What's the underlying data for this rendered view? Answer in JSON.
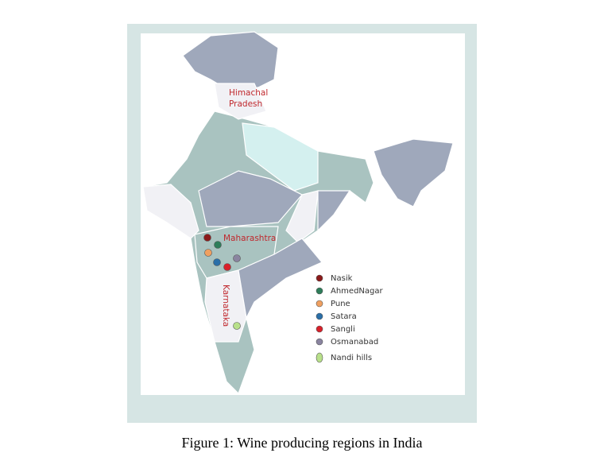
{
  "map": {
    "labels": {
      "himachal_pradesh": [
        "Himachal",
        "Pradesh"
      ],
      "maharashtra": "Maharashtra",
      "karnataka": "Karnataka"
    },
    "legend": [
      {
        "name": "Nasik",
        "color": "#8b1a1a"
      },
      {
        "name": "AhmedNagar",
        "color": "#2e7d5a"
      },
      {
        "name": "Pune",
        "color": "#f0a060"
      },
      {
        "name": "Satara",
        "color": "#2a6fa8"
      },
      {
        "name": "Sangli",
        "color": "#d8202a"
      },
      {
        "name": "Osmanabad",
        "color": "#8a84a0"
      },
      {
        "name": "Nandi hills",
        "color": "#b8e08a"
      }
    ]
  },
  "caption": "Figure 1: Wine producing regions in India"
}
